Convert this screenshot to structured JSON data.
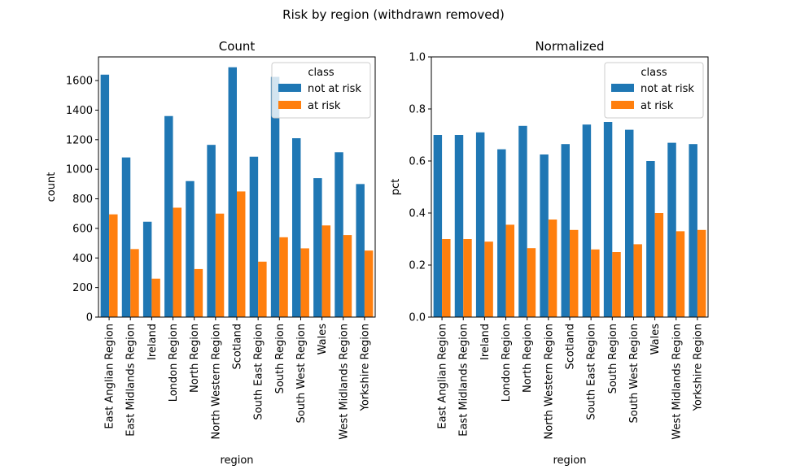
{
  "figure": {
    "suptitle": "Risk by region (withdrawn removed)"
  },
  "colors": {
    "not_at_risk": "#1f77b4",
    "at_risk": "#ff7f0e"
  },
  "chart_data": [
    {
      "type": "bar",
      "title": "Count",
      "xlabel": "region",
      "ylabel": "count",
      "ylim": [
        0,
        1760
      ],
      "yticks": [
        0,
        200,
        400,
        600,
        800,
        1000,
        1200,
        1400,
        1600
      ],
      "ytick_labels": [
        "0",
        "200",
        "400",
        "600",
        "800",
        "1000",
        "1200",
        "1400",
        "1600"
      ],
      "grid": false,
      "legend": {
        "title": "class",
        "position": "top-right"
      },
      "categories": [
        "East Anglian Region",
        "East Midlands Region",
        "Ireland",
        "London Region",
        "North Region",
        "North Western Region",
        "Scotland",
        "South East Region",
        "South Region",
        "South West Region",
        "Wales",
        "West Midlands Region",
        "Yorkshire Region"
      ],
      "series": [
        {
          "name": "not at risk",
          "values": [
            1640,
            1080,
            645,
            1360,
            920,
            1165,
            1690,
            1085,
            1625,
            1210,
            940,
            1115,
            900
          ]
        },
        {
          "name": "at risk",
          "values": [
            695,
            460,
            260,
            740,
            325,
            700,
            850,
            375,
            540,
            465,
            620,
            555,
            450
          ]
        }
      ]
    },
    {
      "type": "bar",
      "title": "Normalized",
      "xlabel": "region",
      "ylabel": "pct",
      "ylim": [
        0,
        1.0
      ],
      "yticks": [
        0,
        0.2,
        0.4,
        0.6,
        0.8,
        1.0
      ],
      "ytick_labels": [
        "0.0",
        "0.2",
        "0.4",
        "0.6",
        "0.8",
        "1.0"
      ],
      "grid": false,
      "legend": {
        "title": "class",
        "position": "top-right"
      },
      "categories": [
        "East Anglian Region",
        "East Midlands Region",
        "Ireland",
        "London Region",
        "North Region",
        "North Western Region",
        "Scotland",
        "South East Region",
        "South Region",
        "South West Region",
        "Wales",
        "West Midlands Region",
        "Yorkshire Region"
      ],
      "series": [
        {
          "name": "not at risk",
          "values": [
            0.7,
            0.7,
            0.71,
            0.645,
            0.735,
            0.625,
            0.665,
            0.74,
            0.75,
            0.72,
            0.6,
            0.67,
            0.665
          ]
        },
        {
          "name": "at risk",
          "values": [
            0.3,
            0.3,
            0.29,
            0.355,
            0.265,
            0.375,
            0.335,
            0.26,
            0.25,
            0.28,
            0.4,
            0.33,
            0.335
          ]
        }
      ]
    }
  ]
}
